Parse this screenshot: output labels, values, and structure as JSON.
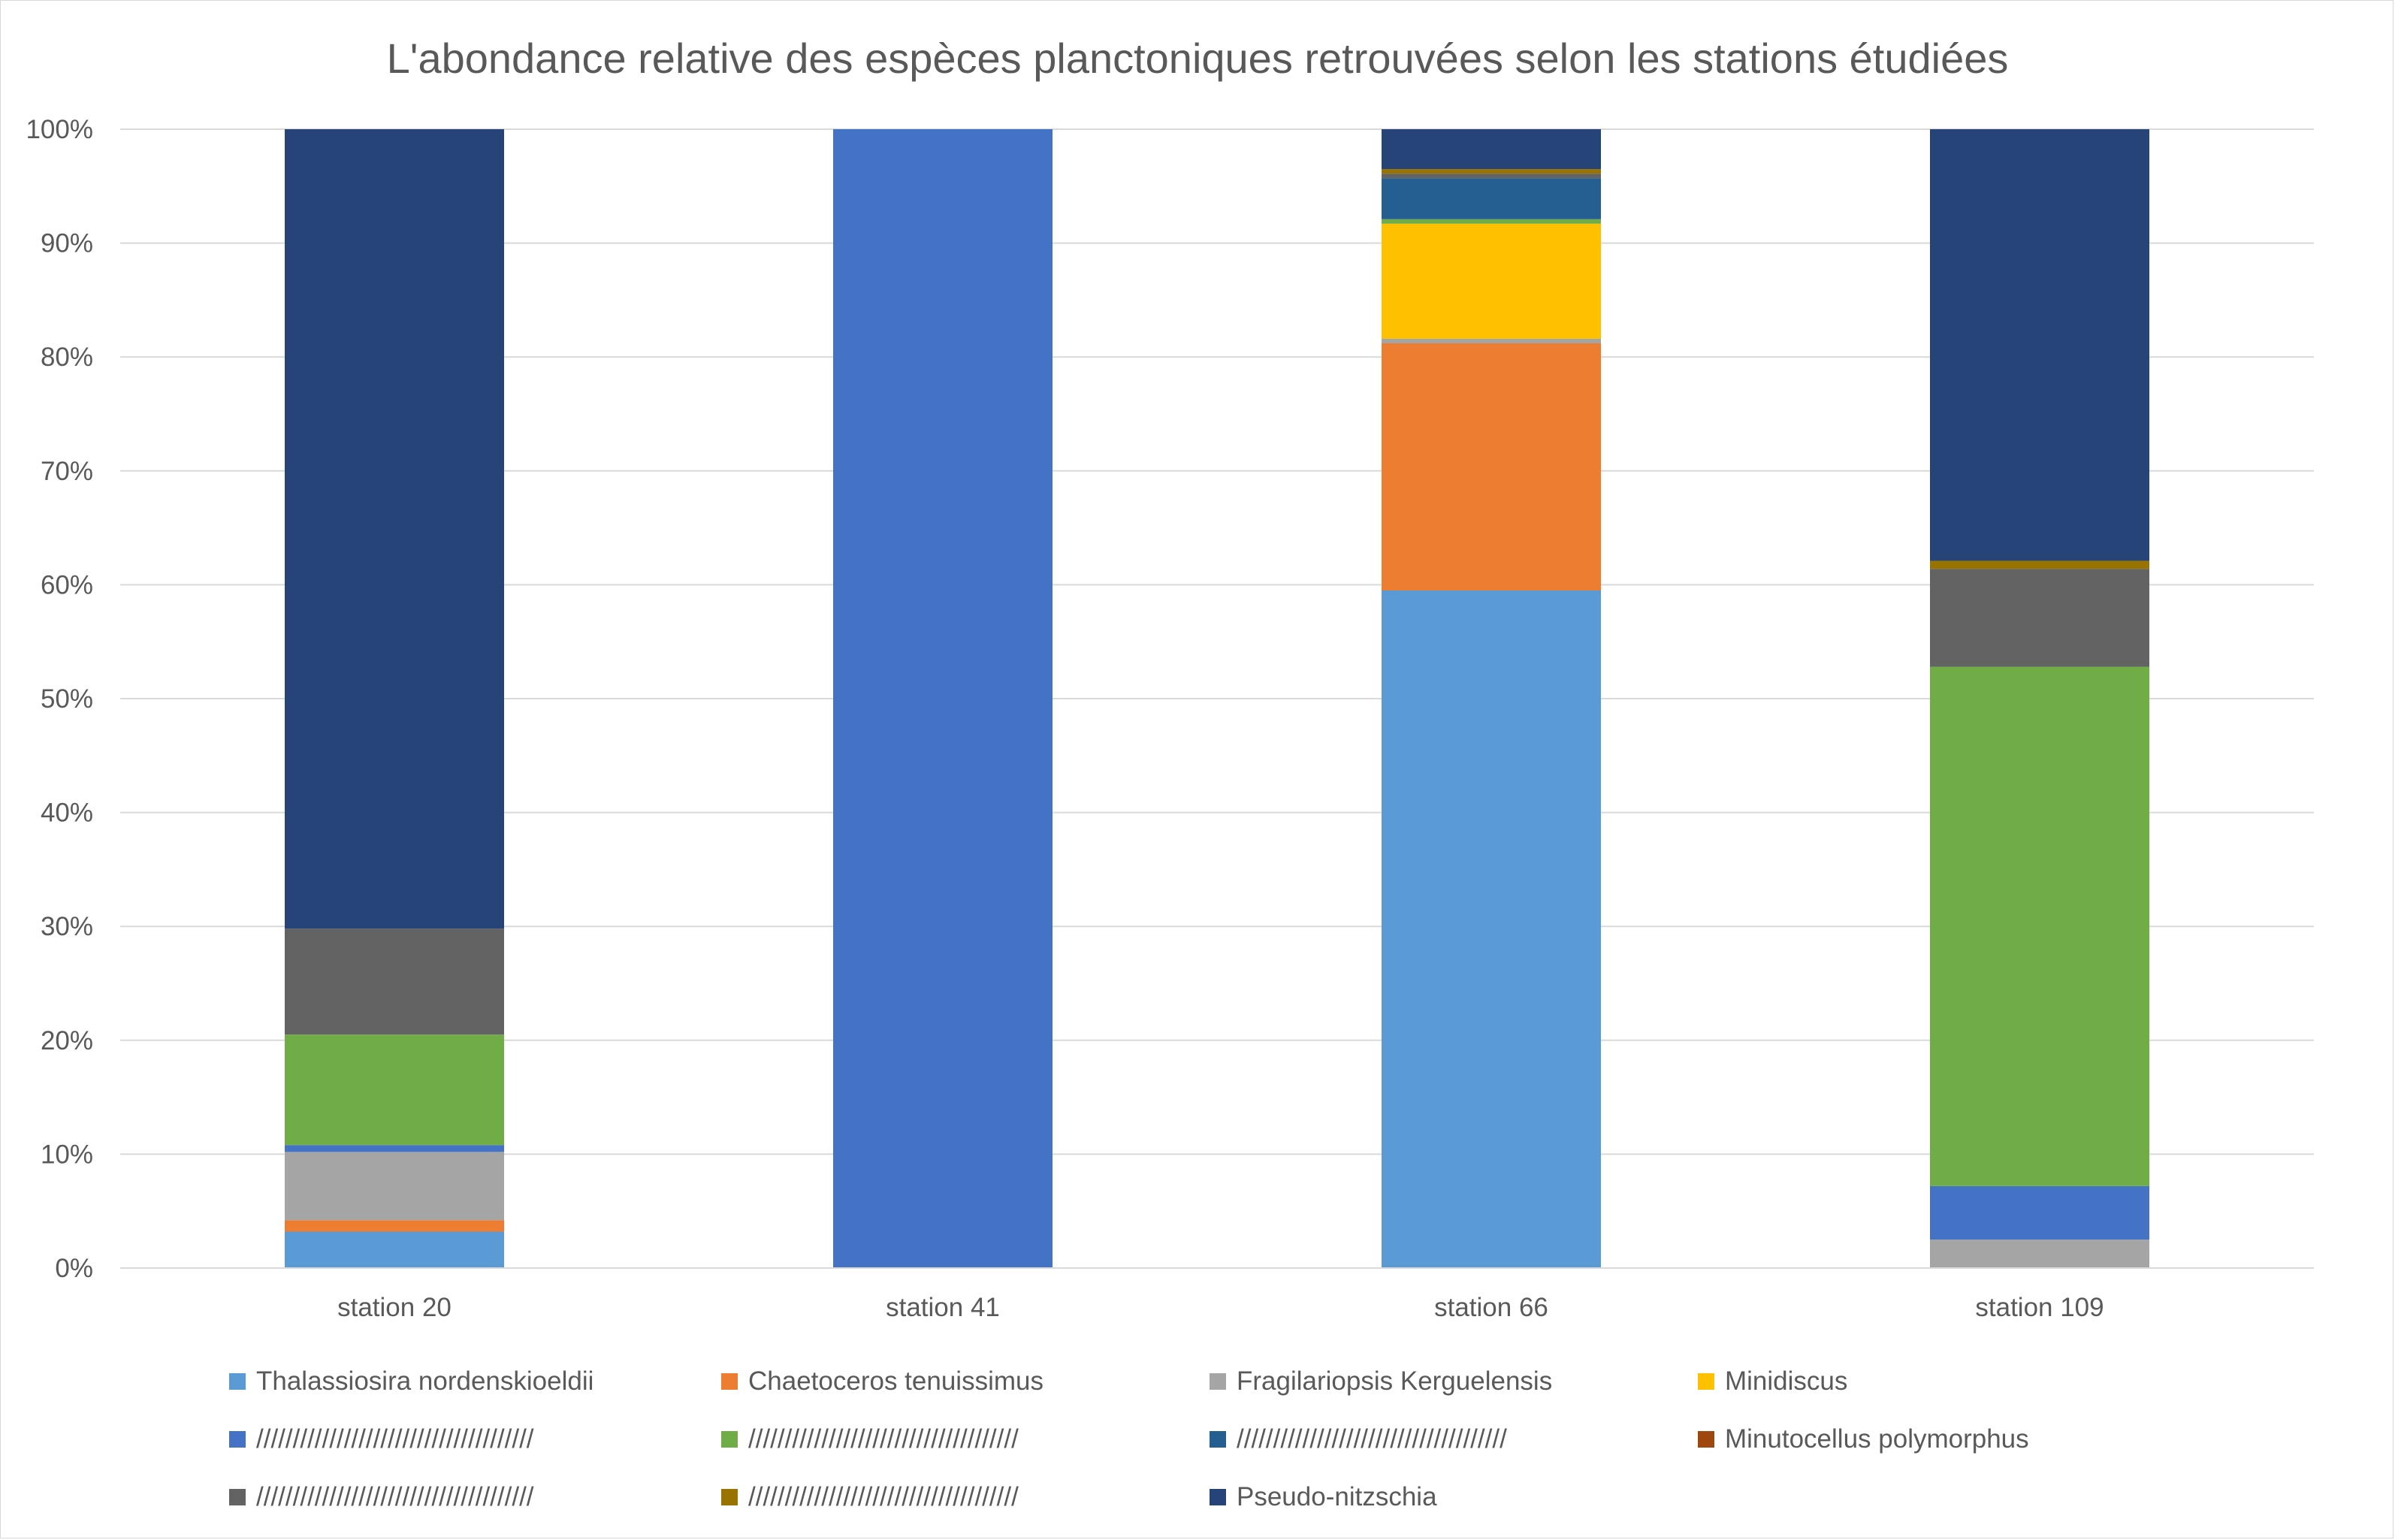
{
  "chart_data": {
    "type": "bar",
    "stacked": "percent",
    "title": "L'abondance relative des espèces planctoniques retrouvées selon les stations étudiées",
    "xlabel": "",
    "ylabel": "",
    "ylim": [
      0,
      100
    ],
    "yticks": [
      "0%",
      "10%",
      "20%",
      "30%",
      "40%",
      "50%",
      "60%",
      "70%",
      "80%",
      "90%",
      "100%"
    ],
    "grid": true,
    "legend_position": "bottom",
    "categories": [
      "station 20",
      "station 41",
      "station 66",
      "station 109"
    ],
    "series": [
      {
        "name": "Thalassiosira nordenskioeldii",
        "color": "#5b9bd5",
        "values": [
          3.2,
          0,
          59.5,
          0
        ]
      },
      {
        "name": "Chaetoceros tenuissimus",
        "color": "#ed7d31",
        "values": [
          1.0,
          0,
          21.7,
          0
        ]
      },
      {
        "name": "Fragilariopsis Kerguelensis",
        "color": "#a5a5a5",
        "values": [
          6.0,
          0,
          0.4,
          2.5
        ]
      },
      {
        "name": "Minidiscus",
        "color": "#ffc000",
        "values": [
          0,
          0,
          10.1,
          0
        ]
      },
      {
        "name": "//////////////////////////////////////",
        "color": "#4472c4",
        "values": [
          0.6,
          100,
          0,
          4.7
        ]
      },
      {
        "name": "/////////////////////////////////////",
        "color": "#70ad47",
        "values": [
          9.7,
          0,
          0.4,
          45.6
        ]
      },
      {
        "name": "/////////////////////////////////////",
        "color": "#255e91",
        "values": [
          0,
          0,
          3.6,
          0
        ]
      },
      {
        "name": "Minutocellus polymorphus",
        "color": "#9e480e",
        "values": [
          0,
          0,
          0,
          0
        ]
      },
      {
        "name": "//////////////////////////////////////",
        "color": "#636363",
        "values": [
          9.3,
          0,
          0.4,
          8.6
        ]
      },
      {
        "name": "/////////////////////////////////////",
        "color": "#997300",
        "values": [
          0,
          0,
          0.4,
          0.7
        ]
      },
      {
        "name": "Pseudo-nitzschia",
        "color": "#264478",
        "values": [
          70.2,
          0,
          3.5,
          37.9
        ]
      }
    ]
  },
  "colors": {
    "grid": "#d9d9d9",
    "text": "#595959",
    "border": "#d9d9d9"
  }
}
